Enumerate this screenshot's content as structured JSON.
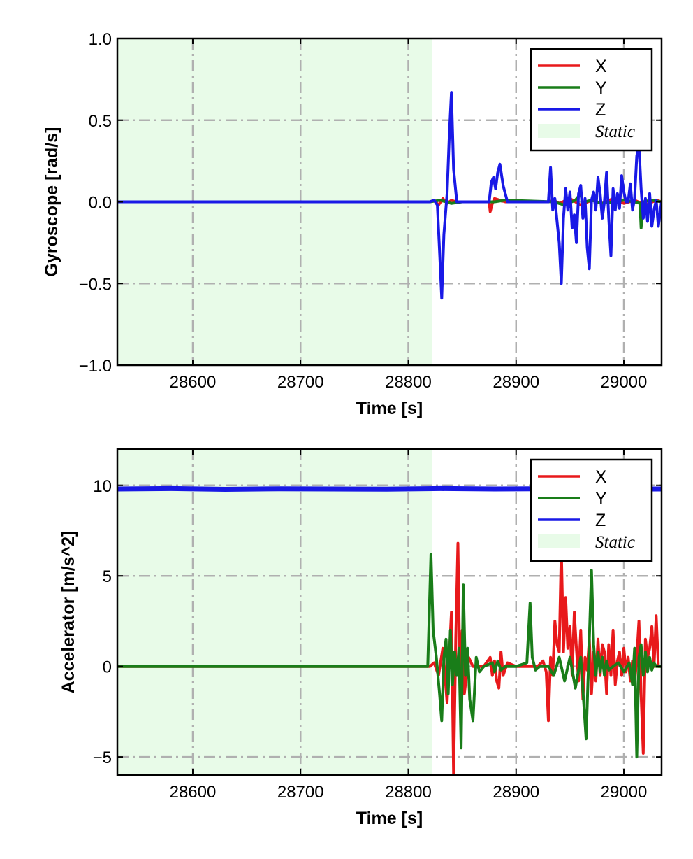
{
  "chart_data": [
    {
      "type": "line",
      "xlabel": "Time [s]",
      "ylabel": "Gyroscope [rad/s]",
      "xlim": [
        28530,
        29035
      ],
      "ylim": [
        -1.0,
        1.0
      ],
      "xticks": [
        28600,
        28700,
        28800,
        28900,
        29000
      ],
      "xtick_labels": [
        "28600",
        "28700",
        "28800",
        "28900",
        "29000"
      ],
      "yticks": [
        -1.0,
        -0.5,
        0.0,
        0.5,
        1.0
      ],
      "ytick_labels": [
        "−1.0",
        "−0.5",
        "0.0",
        "0.5",
        "1.0"
      ],
      "grid": true,
      "legend_position": "top-right",
      "static_region": {
        "label": "Static",
        "x_range": [
          28530,
          28822
        ],
        "color": "#e8fbe8"
      },
      "series": [
        {
          "name": "X",
          "color": "#e8191b",
          "x": [
            28530,
            28820,
            28824,
            28828,
            28832,
            28836,
            28840,
            28844,
            28850,
            28870,
            28875,
            28876,
            28878,
            28880,
            28885,
            28890,
            28930,
            28935,
            28940,
            28950,
            28960,
            28970,
            28980,
            28990,
            29000,
            29010,
            29020,
            29030,
            29035
          ],
          "y": [
            0.0,
            0.0,
            0.01,
            -0.02,
            0.02,
            -0.01,
            0.01,
            0.0,
            0.0,
            0.0,
            0.0,
            -0.06,
            -0.01,
            0.02,
            0.01,
            0.0,
            0.0,
            0.01,
            -0.01,
            0.02,
            -0.02,
            0.01,
            -0.01,
            0.02,
            -0.01,
            0.01,
            -0.02,
            0.01,
            0.0
          ]
        },
        {
          "name": "Y",
          "color": "#197d19",
          "x": [
            28530,
            28820,
            28830,
            28840,
            28850,
            28880,
            28890,
            28935,
            28945,
            28955,
            28960,
            28962,
            28964,
            28970,
            28980,
            28990,
            29000,
            29010,
            29015,
            29016,
            29018,
            29025,
            29035
          ],
          "y": [
            0.0,
            0.0,
            0.01,
            -0.01,
            0.0,
            0.0,
            0.01,
            0.0,
            -0.02,
            0.01,
            0.05,
            -0.02,
            0.0,
            0.01,
            -0.01,
            0.0,
            0.01,
            0.0,
            -0.01,
            -0.16,
            0.0,
            0.01,
            0.0
          ]
        },
        {
          "name": "Z",
          "color": "#1919e6",
          "x": [
            28530,
            28820,
            28824,
            28827,
            28829,
            28831,
            28833,
            28836,
            28838,
            28840,
            28842,
            28845,
            28875,
            28877,
            28879,
            28881,
            28883,
            28885,
            28888,
            28892,
            28900,
            28930,
            28932,
            28934,
            28936,
            28938,
            28940,
            28942,
            28944,
            28946,
            28948,
            28950,
            28952,
            28954,
            28956,
            28958,
            28960,
            28962,
            28964,
            28966,
            28968,
            28970,
            28972,
            28974,
            28976,
            28978,
            28980,
            28982,
            28984,
            28986,
            28988,
            28990,
            28992,
            28994,
            28996,
            28998,
            29000,
            29002,
            29004,
            29006,
            29008,
            29010,
            29012,
            29014,
            29016,
            29018,
            29020,
            29022,
            29024,
            29026,
            29028,
            29030,
            29032,
            29035
          ],
          "y": [
            0.0,
            0.0,
            0.01,
            -0.02,
            -0.3,
            -0.59,
            -0.2,
            0.05,
            0.4,
            0.67,
            0.2,
            0.0,
            0.0,
            0.12,
            0.15,
            0.08,
            0.18,
            0.23,
            0.1,
            0.0,
            0.0,
            0.0,
            0.21,
            -0.05,
            0.02,
            -0.12,
            -0.25,
            -0.5,
            -0.1,
            0.08,
            -0.05,
            0.06,
            -0.16,
            -0.08,
            -0.25,
            0.05,
            0.1,
            -0.1,
            0.02,
            -0.28,
            -0.41,
            0.01,
            0.06,
            -0.05,
            0.15,
            0.05,
            -0.1,
            0.0,
            0.18,
            -0.1,
            -0.33,
            0.08,
            -0.05,
            0.05,
            -0.04,
            0.16,
            0.06,
            0.0,
            0.0,
            0.11,
            -0.05,
            0.02,
            0.28,
            0.35,
            0.08,
            -0.1,
            0.02,
            -0.12,
            0.05,
            -0.15,
            -0.05,
            0.01,
            -0.15,
            0.0
          ]
        }
      ]
    },
    {
      "type": "line",
      "xlabel": "Time [s]",
      "ylabel": "Accelerator [m/s^2]",
      "xlim": [
        28530,
        29035
      ],
      "ylim": [
        -6,
        12
      ],
      "xticks": [
        28600,
        28700,
        28800,
        28900,
        29000
      ],
      "xtick_labels": [
        "28600",
        "28700",
        "28800",
        "28900",
        "29000"
      ],
      "yticks": [
        -5,
        0,
        5,
        10
      ],
      "ytick_labels": [
        "−5",
        "0",
        "5",
        "10"
      ],
      "grid": true,
      "legend_position": "top-right",
      "static_region": {
        "label": "Static",
        "x_range": [
          28530,
          28822
        ],
        "color": "#e8fbe8"
      },
      "series": [
        {
          "name": "X",
          "color": "#e8191b",
          "x": [
            28530,
            28820,
            28824,
            28828,
            28832,
            28836,
            28840,
            28842,
            28844,
            28846,
            28848,
            28850,
            28852,
            28856,
            28860,
            28870,
            28876,
            28878,
            28880,
            28882,
            28884,
            28886,
            28888,
            28892,
            28900,
            28910,
            28920,
            28925,
            28928,
            28930,
            28932,
            28934,
            28936,
            28938,
            28940,
            28942,
            28944,
            28946,
            28948,
            28950,
            28952,
            28954,
            28956,
            28958,
            28960,
            28962,
            28964,
            28966,
            28968,
            28970,
            28972,
            28974,
            28976,
            28978,
            28980,
            28982,
            28984,
            28986,
            28988,
            28990,
            28992,
            28994,
            28996,
            28998,
            29000,
            29002,
            29004,
            29006,
            29008,
            29010,
            29012,
            29014,
            29016,
            29018,
            29020,
            29022,
            29024,
            29026,
            29028,
            29030,
            29032,
            29035
          ],
          "y": [
            0.0,
            0.0,
            0.2,
            -0.5,
            1.0,
            -2.0,
            3.0,
            -6.0,
            1.5,
            6.8,
            -1.0,
            2.0,
            -1.5,
            0.5,
            0.0,
            0.0,
            0.5,
            -0.5,
            0.3,
            -0.8,
            -1.2,
            0.8,
            -0.5,
            0.2,
            0.0,
            0.0,
            0.0,
            0.3,
            -0.3,
            -3.0,
            0.5,
            -0.5,
            2.5,
            1.2,
            0.8,
            6.5,
            0.8,
            3.8,
            1.0,
            2.2,
            -0.5,
            3.0,
            1.0,
            -0.8,
            2.0,
            -1.8,
            0.5,
            -0.2,
            1.5,
            -1.5,
            0.8,
            -0.8,
            1.5,
            -0.5,
            1.2,
            0.8,
            -1.5,
            1.2,
            -0.5,
            2.0,
            -1.0,
            0.3,
            0.8,
            -0.5,
            1.0,
            -0.3,
            0.5,
            -0.8,
            0.3,
            -1.0,
            0.5,
            2.5,
            -1.5,
            -4.8,
            1.5,
            0.5,
            1.0,
            2.2,
            0.0,
            2.8,
            0.0,
            0.0
          ]
        },
        {
          "name": "Y",
          "color": "#197d19",
          "x": [
            28530,
            28818,
            28821,
            28823,
            28826,
            28829,
            28831,
            28833,
            28835,
            28837,
            28839,
            28841,
            28843,
            28845,
            28847,
            28849,
            28851,
            28853,
            28855,
            28857,
            28860,
            28863,
            28866,
            28870,
            28878,
            28880,
            28883,
            28886,
            28890,
            28900,
            28910,
            28913,
            28915,
            28918,
            28922,
            28930,
            28935,
            28940,
            28945,
            28950,
            28955,
            28960,
            28965,
            28968,
            28970,
            28972,
            28974,
            28976,
            28978,
            28980,
            28982,
            28984,
            28986,
            28990,
            28995,
            29000,
            29005,
            29008,
            29010,
            29012,
            29014,
            29016,
            29018,
            29020,
            29022,
            29024,
            29026,
            29028,
            29030,
            29035
          ],
          "y": [
            0.0,
            0.0,
            6.2,
            2.0,
            0.5,
            -1.5,
            -3.0,
            0.5,
            1.5,
            -1.5,
            2.0,
            -1.0,
            0.8,
            -0.5,
            1.0,
            -4.5,
            4.5,
            -0.5,
            1.0,
            -1.8,
            -3.0,
            0.5,
            -0.3,
            0.0,
            0.2,
            -0.3,
            0.3,
            -0.2,
            0.0,
            0.0,
            0.2,
            3.5,
            0.5,
            -0.2,
            0.0,
            0.0,
            -0.5,
            0.5,
            -0.8,
            0.5,
            -1.2,
            0.5,
            -4.0,
            1.5,
            5.3,
            1.2,
            -0.5,
            0.8,
            -0.3,
            0.5,
            -0.5,
            0.3,
            -0.2,
            0.0,
            0.2,
            -0.3,
            0.2,
            -1.0,
            1.0,
            -5.0,
            0.5,
            1.2,
            -0.5,
            0.8,
            -0.3,
            0.5,
            -0.2,
            0.2,
            0.0,
            0.0
          ]
        },
        {
          "name": "Z",
          "color": "#1919e6",
          "x": [
            28530,
            28580,
            28630,
            28680,
            28730,
            28780,
            28830,
            28880,
            28930,
            28980,
            29035
          ],
          "y": [
            9.8,
            9.82,
            9.78,
            9.81,
            9.8,
            9.79,
            9.82,
            9.8,
            9.81,
            9.79,
            9.8
          ]
        }
      ]
    }
  ]
}
